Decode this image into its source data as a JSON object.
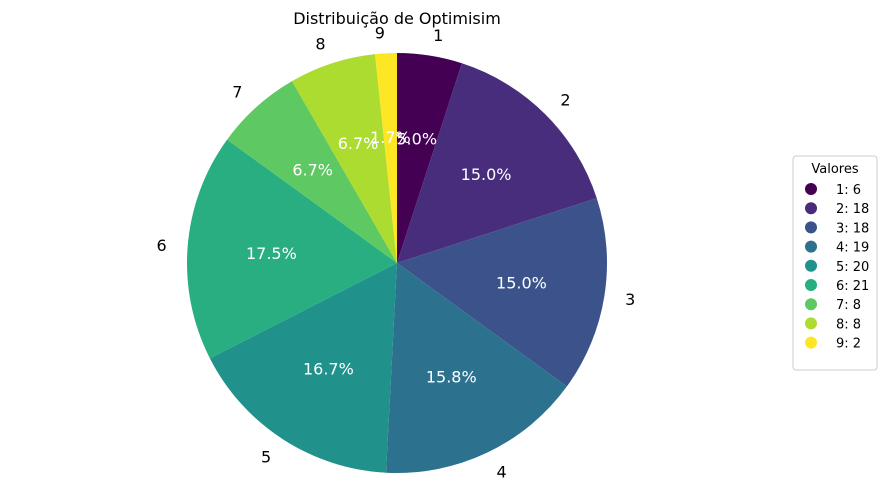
{
  "chart_data": {
    "type": "pie",
    "title": "Distribuição de Optimisim",
    "categories": [
      "1",
      "2",
      "3",
      "4",
      "5",
      "6",
      "7",
      "8",
      "9"
    ],
    "values": [
      6,
      18,
      18,
      19,
      20,
      21,
      8,
      8,
      2
    ],
    "percent_labels": [
      "5.0%",
      "15.0%",
      "15.0%",
      "15.8%",
      "16.7%",
      "17.5%",
      "6.7%",
      "6.7%",
      "1.7%"
    ],
    "colors": [
      "#440154",
      "#472d7b",
      "#3b528b",
      "#2c728e",
      "#21918c",
      "#28ae80",
      "#5ec962",
      "#addc30",
      "#fde725"
    ],
    "start_angle_deg": 90,
    "direction": "clockwise",
    "legend": {
      "title": "Valores",
      "placement": "right",
      "entries": [
        "1: 6",
        "2: 18",
        "3: 18",
        "4: 19",
        "5: 20",
        "6: 21",
        "7: 8",
        "8: 8",
        "9: 2"
      ]
    }
  }
}
